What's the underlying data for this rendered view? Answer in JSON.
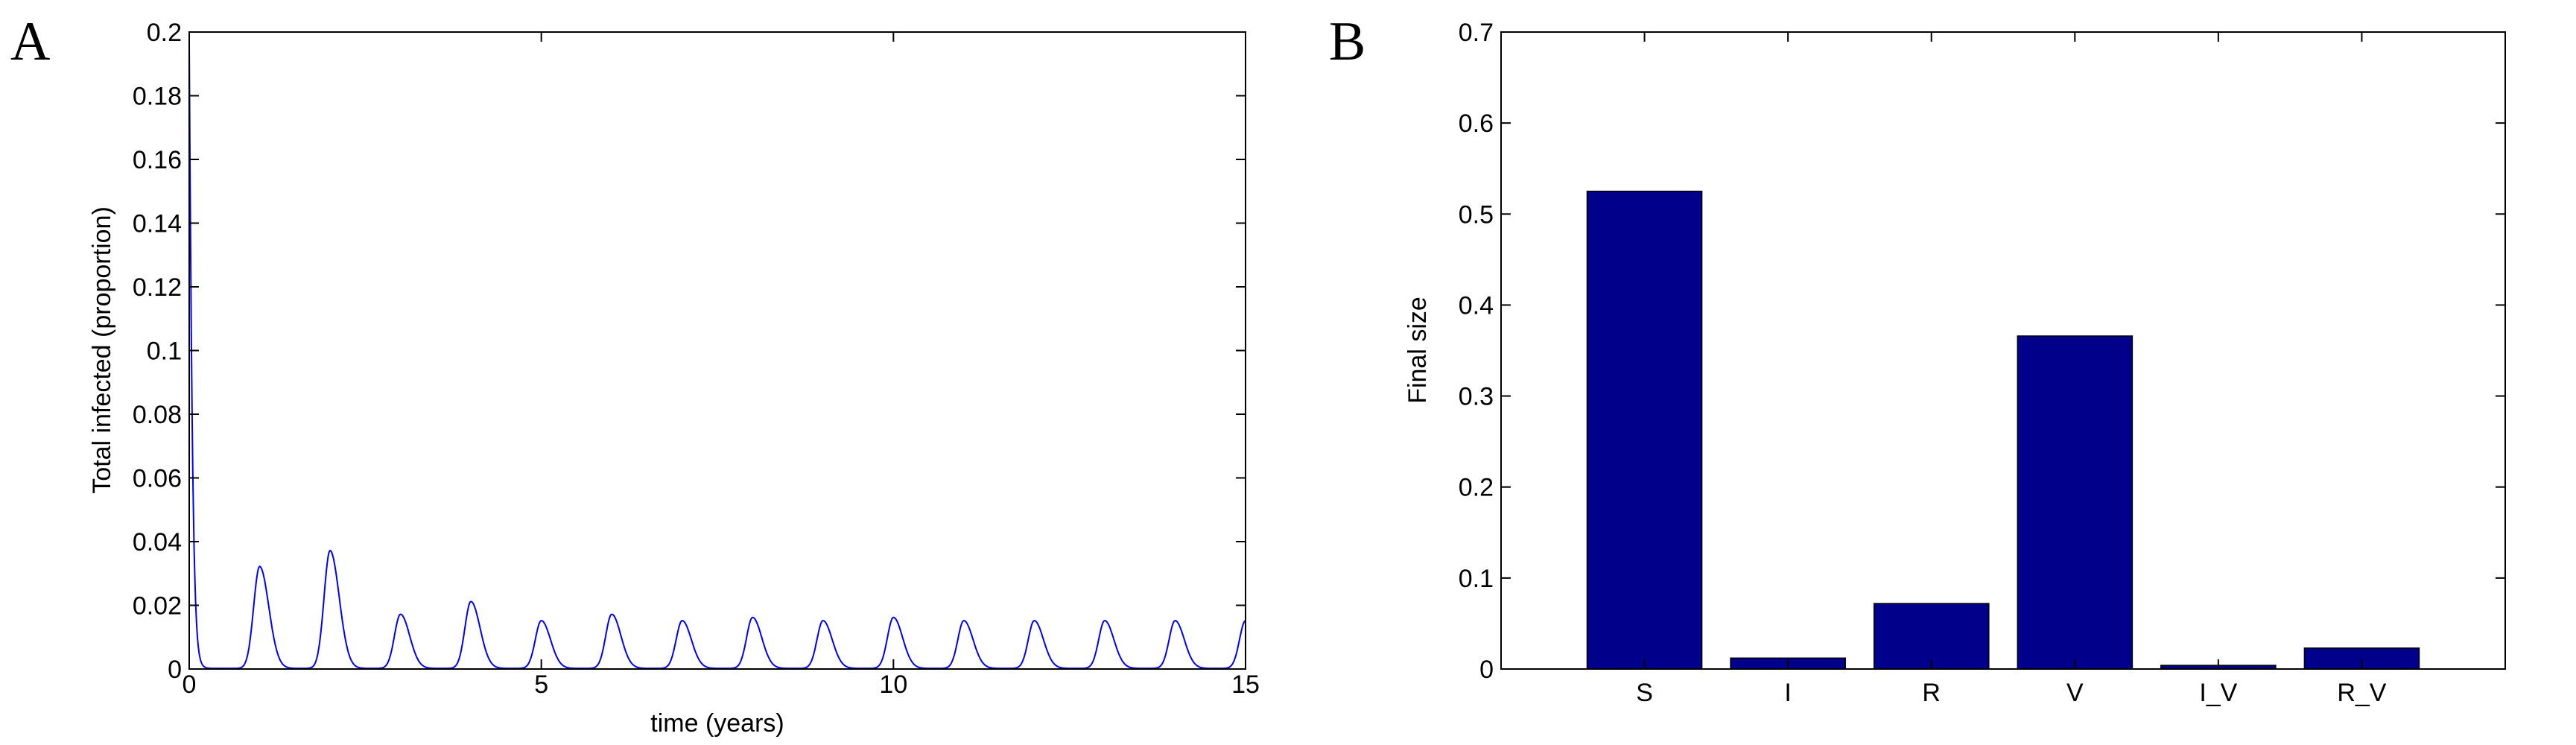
{
  "panels": [
    "A",
    "B"
  ],
  "chart_data": [
    {
      "type": "line",
      "xlabel": "time (years)",
      "ylabel": "Total infected (proportion)",
      "xlim": [
        0,
        15
      ],
      "ylim": [
        0,
        0.2
      ],
      "xticks": [
        0,
        5,
        10,
        15
      ],
      "yticks": [
        0,
        0.02,
        0.04,
        0.06,
        0.08,
        0.1,
        0.12,
        0.14,
        0.16,
        0.18,
        0.2
      ],
      "grid": false,
      "line_color": "#0000ff",
      "initial_peak": 0.196,
      "annual_peaks": [
        {
          "x": 1,
          "y": 0.032
        },
        {
          "x": 2,
          "y": 0.037
        },
        {
          "x": 3,
          "y": 0.017
        },
        {
          "x": 4,
          "y": 0.021
        },
        {
          "x": 5,
          "y": 0.015
        },
        {
          "x": 6,
          "y": 0.017
        },
        {
          "x": 7,
          "y": 0.015
        },
        {
          "x": 8,
          "y": 0.016
        },
        {
          "x": 9,
          "y": 0.015
        },
        {
          "x": 10,
          "y": 0.016
        },
        {
          "x": 11,
          "y": 0.015
        },
        {
          "x": 12,
          "y": 0.015
        },
        {
          "x": 13,
          "y": 0.015
        },
        {
          "x": 14,
          "y": 0.015
        },
        {
          "x": 15,
          "y": 0.015
        }
      ]
    },
    {
      "type": "bar",
      "categories": [
        "S",
        "I",
        "R",
        "V",
        "I_V",
        "R_V"
      ],
      "values": [
        0.525,
        0.012,
        0.072,
        0.366,
        0.004,
        0.023
      ],
      "xlabel": "",
      "ylabel": "Final size",
      "ylim": [
        0,
        0.7
      ],
      "yticks": [
        0,
        0.1,
        0.2,
        0.3,
        0.4,
        0.5,
        0.6,
        0.7
      ],
      "grid": false,
      "bar_color": "#00008b"
    }
  ]
}
